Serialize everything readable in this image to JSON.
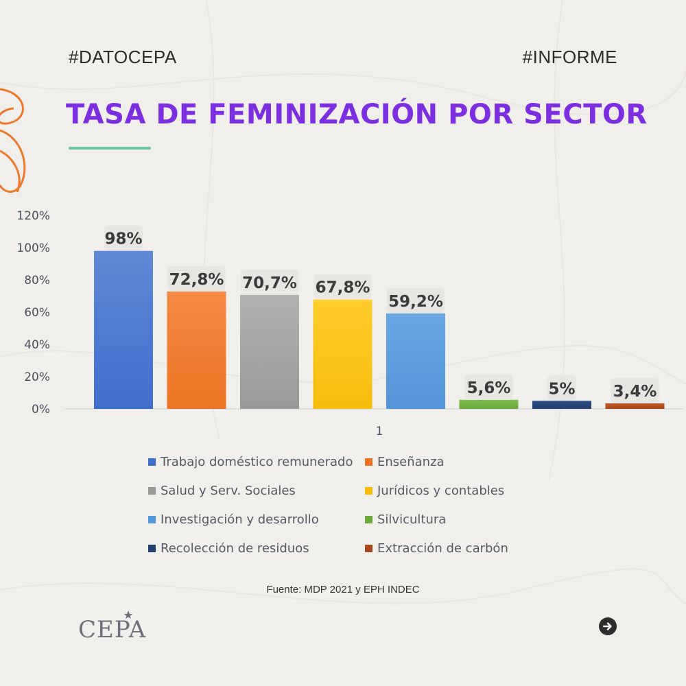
{
  "header": {
    "tag_left": "#DATOCEPA",
    "tag_right": "#INFORME",
    "title": "TASA DE FEMINIZACIÓN POR SECTOR"
  },
  "chart_data": {
    "type": "bar",
    "categories": [
      "1"
    ],
    "ylim": [
      0,
      120
    ],
    "yticks": [
      0,
      20,
      40,
      60,
      80,
      100,
      120
    ],
    "ytick_labels": [
      "0%",
      "20%",
      "40%",
      "60%",
      "80%",
      "100%",
      "120%"
    ],
    "xlabel": "",
    "ylabel": "",
    "legend_position": "bottom",
    "series": [
      {
        "name": "Trabajo doméstico remunerado",
        "values": [
          98
        ],
        "label": "98%",
        "color": "#3f6fcc",
        "color_light": "#6089d6"
      },
      {
        "name": "Enseñanza",
        "values": [
          72.8
        ],
        "label": "72,8%",
        "color": "#ec7424",
        "color_light": "#f48a44"
      },
      {
        "name": "Salud y Serv. Sociales",
        "values": [
          70.7
        ],
        "label": "70,7%",
        "color": "#999999",
        "color_light": "#b1b1b1"
      },
      {
        "name": "Jurídicos y contables",
        "values": [
          67.8
        ],
        "label": "67,8%",
        "color": "#f6bd0a",
        "color_light": "#ffcd2c"
      },
      {
        "name": "Investigación y desarrollo",
        "values": [
          59.2
        ],
        "label": "59,2%",
        "color": "#5295d8",
        "color_light": "#6aa6e3"
      },
      {
        "name": "Silvicultura",
        "values": [
          5.6
        ],
        "label": "5,6%",
        "color": "#6aaa3c",
        "color_light": "#7cbd4c"
      },
      {
        "name": "Recolección de residuos",
        "values": [
          5
        ],
        "label": "5%",
        "color": "#23406f",
        "color_light": "#2f5088"
      },
      {
        "name": "Extracción de carbón",
        "values": [
          3.4
        ],
        "label": "3,4%",
        "color": "#a8471c",
        "color_light": "#bd5a2b"
      }
    ]
  },
  "footer": {
    "source": "Fuente: MDP 2021 y EPH INDEC",
    "logo_text": "CEPA",
    "next_icon": "arrow-right-circle-icon"
  }
}
